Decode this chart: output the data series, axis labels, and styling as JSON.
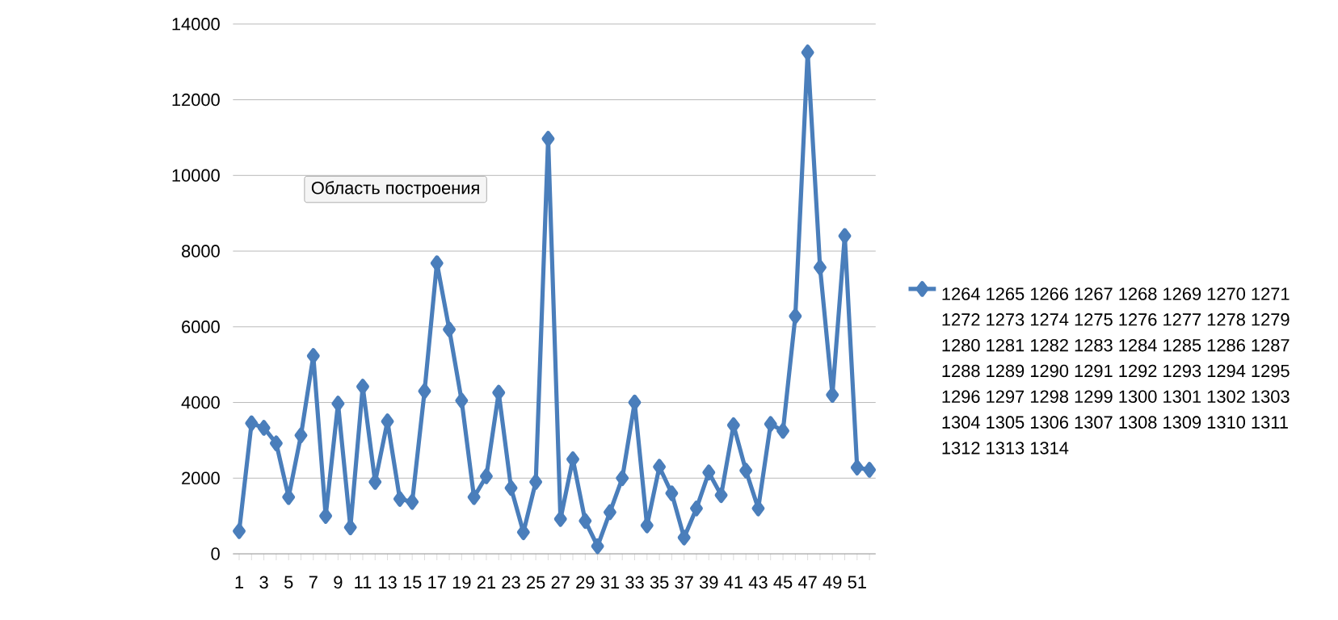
{
  "chart_data": {
    "type": "line",
    "categories": [
      "1",
      null,
      "3",
      null,
      "5",
      null,
      "7",
      null,
      "9",
      null,
      "11",
      null,
      "13",
      null,
      "15",
      null,
      "17",
      null,
      "19",
      null,
      "21",
      null,
      "23",
      null,
      "25",
      null,
      "27",
      null,
      "29",
      null,
      "31",
      null,
      "33",
      null,
      "35",
      null,
      "37",
      null,
      "39",
      null,
      "41",
      null,
      "43",
      null,
      "45",
      null,
      "47",
      null,
      "49",
      null,
      "51",
      null
    ],
    "series": [
      {
        "name": "1264 1265 1266 1267 1268 1269 1270 1271 1272 1273 1274 1275 1276 1277 1278 1279 1280 1281 1282 1283 1284 1285 1286 1287 1288 1289 1290 1291 1292 1293 1294 1295 1296 1297 1298 1299 1300 1301 1302 1303 1304 1305 1306 1307 1308 1309 1310 1311 1312 1313 1314",
        "color": "#4a7ebb",
        "values": [
          600,
          3450,
          3330,
          2920,
          1500,
          3130,
          5230,
          1000,
          3970,
          700,
          4420,
          1900,
          3500,
          1450,
          1370,
          4300,
          7680,
          5930,
          4050,
          1500,
          2050,
          4260,
          1740,
          570,
          1900,
          10970,
          920,
          2500,
          870,
          200,
          1100,
          2000,
          4000,
          750,
          2300,
          1600,
          430,
          1200,
          2150,
          1550,
          3400,
          2200,
          1200,
          3430,
          3250,
          6280,
          13250,
          7570,
          4200,
          8400,
          2280,
          2220
        ]
      }
    ],
    "ylim": [
      0,
      14000
    ],
    "yticks": [
      0,
      2000,
      4000,
      6000,
      8000,
      10000,
      12000,
      14000
    ],
    "grid": "y",
    "legend": "right",
    "marker": "diamond",
    "line_style": "solid",
    "annotations": [
      "Область построения"
    ]
  }
}
